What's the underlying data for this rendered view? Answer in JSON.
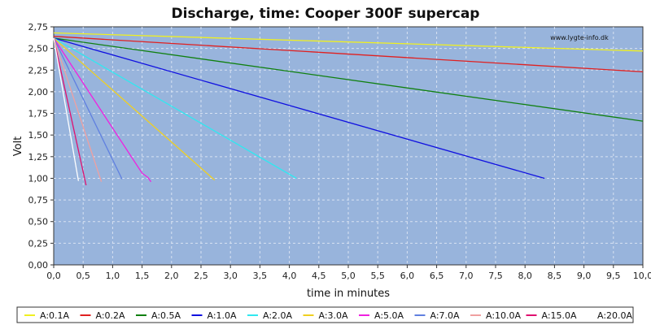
{
  "chart_data": {
    "type": "line",
    "title": "Discharge, time: Cooper 300F supercap",
    "watermark": "www.lygte-info.dk",
    "xlabel": "time in minutes",
    "ylabel": "Volt",
    "xlim": [
      0,
      10
    ],
    "ylim": [
      0,
      2.75
    ],
    "xticks": [
      "0,0",
      "0,5",
      "1,0",
      "1,5",
      "2,0",
      "2,5",
      "3,0",
      "3,5",
      "4,0",
      "4,5",
      "5,0",
      "5,5",
      "6,0",
      "6,5",
      "7,0",
      "7,5",
      "8,0",
      "8,5",
      "9,0",
      "9,5",
      "10,0"
    ],
    "yticks": [
      "0,00",
      "0,25",
      "0,50",
      "0,75",
      "1,00",
      "1,25",
      "1,50",
      "1,75",
      "2,00",
      "2,25",
      "2,50",
      "2,75"
    ],
    "grid": true,
    "legend_position": "bottom",
    "plot_background": "#98b4dc",
    "series": [
      {
        "name": "A:0.1A",
        "color": "#f0f020",
        "x": [
          0,
          10
        ],
        "y": [
          2.68,
          2.47
        ]
      },
      {
        "name": "A:0.2A",
        "color": "#e02020",
        "x": [
          0,
          10
        ],
        "y": [
          2.64,
          2.23
        ]
      },
      {
        "name": "A:0.5A",
        "color": "#108010",
        "x": [
          0,
          10
        ],
        "y": [
          2.62,
          1.66
        ]
      },
      {
        "name": "A:1.0A",
        "color": "#1010e0",
        "x": [
          0,
          8.33
        ],
        "y": [
          2.62,
          1.0
        ]
      },
      {
        "name": "A:2.0A",
        "color": "#30e8f0",
        "x": [
          0,
          4.12
        ],
        "y": [
          2.62,
          1.0
        ]
      },
      {
        "name": "A:3.0A",
        "color": "#f0d020",
        "x": [
          0,
          2.73
        ],
        "y": [
          2.62,
          0.98
        ]
      },
      {
        "name": "A:5.0A",
        "color": "#f020e0",
        "x": [
          0,
          1.5,
          1.6,
          1.65
        ],
        "y": [
          2.62,
          1.06,
          1.01,
          0.96
        ]
      },
      {
        "name": "A:7.0A",
        "color": "#6080e0",
        "x": [
          0,
          1.16
        ],
        "y": [
          2.62,
          0.99
        ]
      },
      {
        "name": "A:10.0A",
        "color": "#f0a0a0",
        "x": [
          0,
          0.81
        ],
        "y": [
          2.62,
          0.96
        ]
      },
      {
        "name": "A:15.0A",
        "color": "#e01070",
        "x": [
          0,
          0.55
        ],
        "y": [
          2.62,
          0.92
        ]
      },
      {
        "name": "A:20.0A",
        "color": "#ffffff",
        "x": [
          0,
          0.42
        ],
        "y": [
          2.62,
          0.97
        ]
      }
    ]
  }
}
